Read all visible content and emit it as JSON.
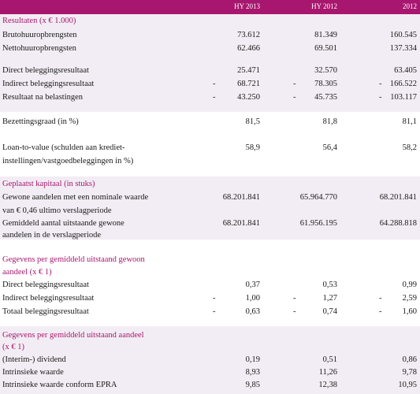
{
  "header": {
    "col1": "HY 2013",
    "col2": "HY 2012",
    "col3": "2012"
  },
  "sections": {
    "results": "Resultaten (x € 1.000)",
    "capital": "Geplaatst kapitaal (in stuks)",
    "per_share_ordinary_1": "Gegevens per gemiddeld uitstaand gewoon",
    "per_share_ordinary_2": "aandeel (x € 1)",
    "per_share_1": "Gegevens per gemiddeld uitstaand aandeel",
    "per_share_2": "(x € 1)"
  },
  "rows": {
    "bruto": {
      "label": "Brutohuuropbrengsten",
      "v1": "73.612",
      "v2": "81.349",
      "v3": "160.545"
    },
    "netto": {
      "label": "Nettohuuropbrengsten",
      "v1": "62.466",
      "v2": "69.501",
      "v3": "137.334"
    },
    "direct": {
      "label": "Direct beleggingsresultaat",
      "v1": "25.471",
      "v2": "32.570",
      "v3": "63.405"
    },
    "indirect": {
      "label": "Indirect beleggingsresultaat",
      "v1": "68.721",
      "v2": "78.305",
      "v3": "166.522"
    },
    "resultaat": {
      "label": "Resultaat na belastingen",
      "v1": "43.250",
      "v2": "45.735",
      "v3": "103.117"
    },
    "bezetting": {
      "label": "Bezettingsgraad (in %)",
      "v1": "81,5",
      "v2": "81,8",
      "v3": "81,1"
    },
    "ltv1": {
      "label": "Loan-to-value (schulden aan krediet-",
      "v1": "58,9",
      "v2": "56,4",
      "v3": "58,2"
    },
    "ltv2": {
      "label": "instellingen/vastgoedbeleggingen in %)"
    },
    "gewone1": {
      "label": "Gewone aandelen met een nominale waarde",
      "v1": "68.201.841",
      "v2": "65.964.770",
      "v3": "68.201.841"
    },
    "gewone2": {
      "label": "van € 0,46 ultimo verslagperiode"
    },
    "gemiddeld1": {
      "label": "Gemiddeld aantal uitstaande gewone",
      "v1": "68.201.841",
      "v2": "61.956.195",
      "v3": "64.288.818"
    },
    "gemiddeld2": {
      "label": "aandelen in de verslagperiode"
    },
    "ps_direct": {
      "label": "Direct beleggingsresultaat",
      "v1": "0,37",
      "v2": "0,53",
      "v3": "0,99"
    },
    "ps_indirect": {
      "label": "Indirect beleggingsresultaat",
      "v1": "1,00",
      "v2": "1,27",
      "v3": "2,59"
    },
    "ps_totaal": {
      "label": "Totaal beleggingsresultaat",
      "v1": "0,63",
      "v2": "0,74",
      "v3": "1,60"
    },
    "dividend": {
      "label": "(Interim-) dividend",
      "v1": "0,19",
      "v2": "0,51",
      "v3": "0,86"
    },
    "intrinsiek": {
      "label": "Intrinsieke waarde",
      "v1": "8,93",
      "v2": "11,26",
      "v3": "9,78"
    },
    "epra": {
      "label": "Intrinsieke waarde conform EPRA",
      "v1": "9,85",
      "v2": "12,38",
      "v3": "10,95"
    }
  },
  "minus_sign": "-",
  "colors": {
    "accent": "#a8176f",
    "band": "#f2edf4"
  }
}
